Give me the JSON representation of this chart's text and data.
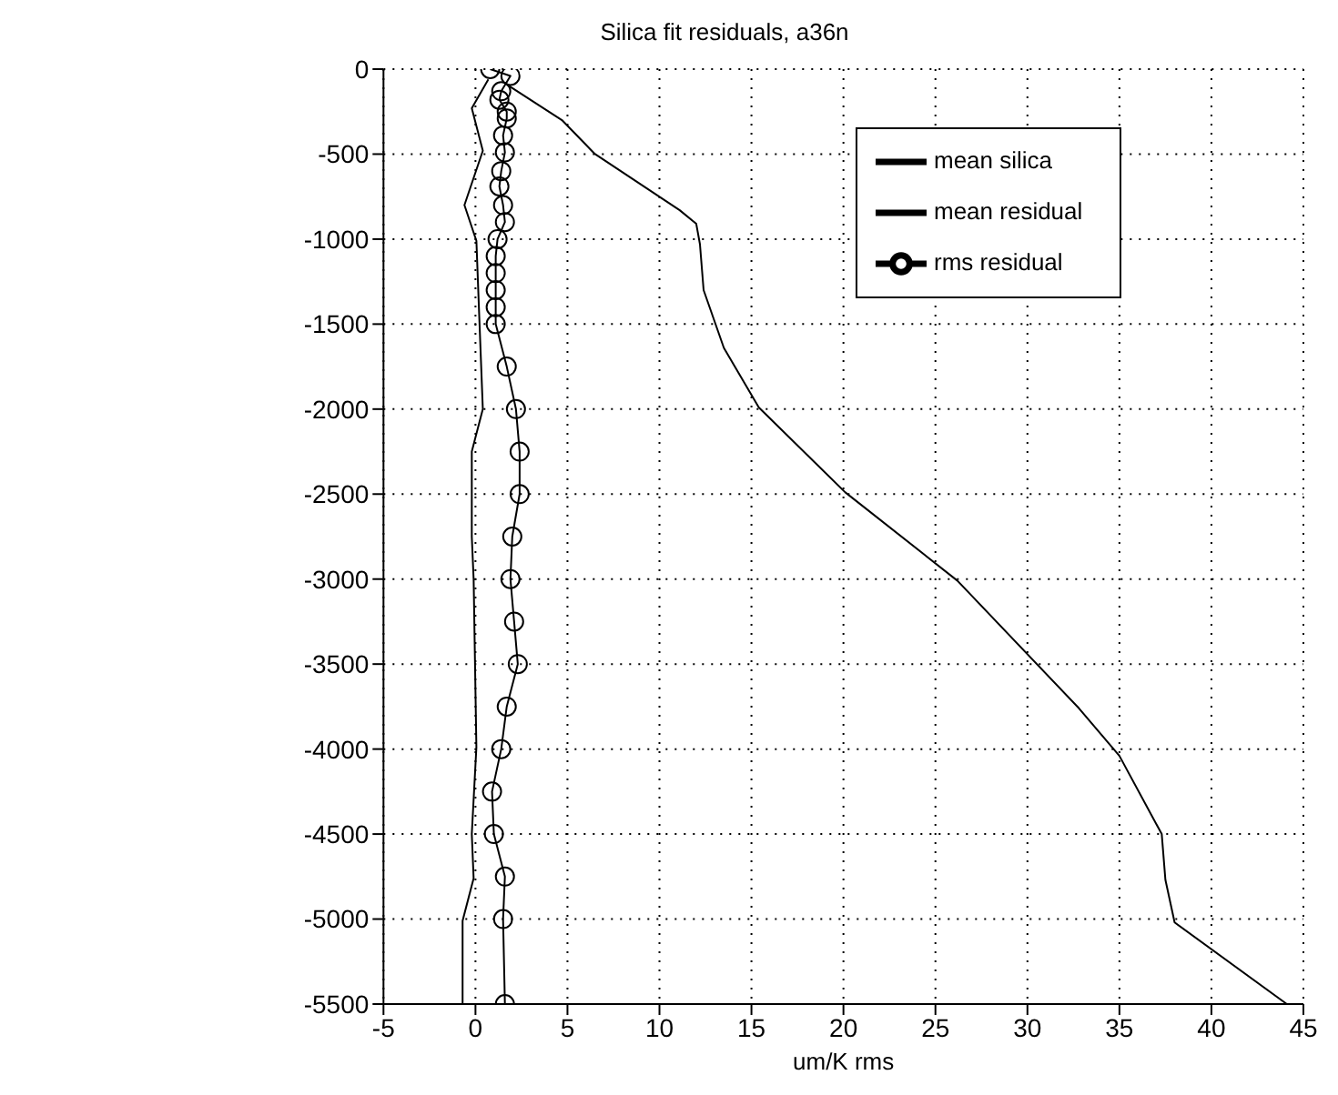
{
  "chart_data": {
    "type": "line",
    "title": "Silica fit residuals, a36n",
    "xlabel": "um/K rms",
    "xlim": [
      -5,
      45
    ],
    "xticks": [
      -5,
      0,
      5,
      10,
      15,
      20,
      25,
      30,
      35,
      40,
      45
    ],
    "ylim": [
      -5500,
      0
    ],
    "yticks": [
      -5500,
      -5000,
      -4500,
      -4000,
      -3500,
      -3000,
      -2500,
      -2000,
      -1500,
      -1000,
      -500,
      0
    ],
    "grid": true,
    "legend": "top right",
    "line_style": "solid",
    "series": [
      {
        "name": "mean silica",
        "color": "#000000",
        "marker": "none",
        "x": [
          1.7,
          4.7,
          6.5,
          11.1,
          12.0,
          12.2,
          12.4,
          13.5,
          15.4,
          20.1,
          26.2,
          32.8,
          35.0,
          37.3,
          37.5,
          38.0,
          44.1
        ],
        "values": [
          -90,
          -300,
          -500,
          -830,
          -910,
          -1030,
          -1300,
          -1640,
          -1990,
          -2490,
          -3010,
          -3760,
          -4040,
          -4500,
          -4770,
          -5020,
          -5500
        ]
      },
      {
        "name": "mean residual",
        "color": "#000000",
        "marker": "none",
        "x": [
          0.7,
          -0.2,
          0.4,
          -0.6,
          0.05,
          0.2,
          0.4,
          -0.2,
          -0.2,
          -0.1,
          0.05,
          -0.2,
          -0.1,
          -0.7,
          -0.7
        ],
        "values": [
          -60,
          -230,
          -480,
          -800,
          -1010,
          -1440,
          -2000,
          -2250,
          -2750,
          -3000,
          -3990,
          -4500,
          -4760,
          -5010,
          -5500
        ]
      },
      {
        "name": "rms residual",
        "color": "#000000",
        "marker": "circle",
        "x": [
          0.8,
          1.9,
          1.4,
          1.3,
          1.7,
          1.7,
          1.5,
          1.6,
          1.4,
          1.3,
          1.5,
          1.6,
          1.2,
          1.1,
          1.1,
          1.1,
          1.1,
          1.1,
          1.7,
          2.2,
          2.4,
          2.4,
          2.0,
          1.9,
          2.1,
          2.3,
          1.7,
          1.4,
          0.9,
          1.0,
          1.6,
          1.5,
          1.6
        ],
        "values": [
          0,
          -40,
          -130,
          -180,
          -250,
          -290,
          -390,
          -490,
          -600,
          -690,
          -800,
          -900,
          -1000,
          -1100,
          -1200,
          -1300,
          -1400,
          -1500,
          -1750,
          -2000,
          -2250,
          -2500,
          -2750,
          -3000,
          -3250,
          -3500,
          -3750,
          -4000,
          -4250,
          -4500,
          -4750,
          -5000,
          -5500
        ]
      }
    ]
  }
}
